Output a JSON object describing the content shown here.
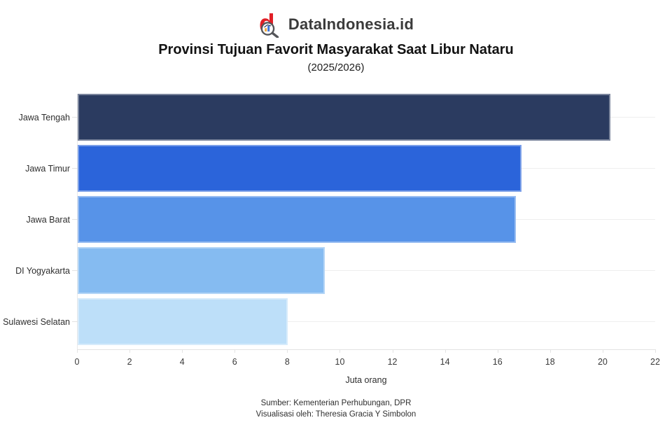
{
  "header": {
    "brand": "DataIndonesia.id",
    "logo_icon": "magnifying-glass-d-logo",
    "brand_red": "#e11f26",
    "title": "Provinsi Tujuan Favorit Masyarakat Saat Libur Nataru",
    "subtitle": "(2025/2026)"
  },
  "chart_data": {
    "type": "bar",
    "orientation": "horizontal",
    "title": "Provinsi Tujuan Favorit Masyarakat Saat Libur Nataru",
    "subtitle": "(2025/2026)",
    "categories": [
      "Jawa Tengah",
      "Jawa Timur",
      "Jawa Barat",
      "DI Yogyakarta",
      "Sulawesi Selatan"
    ],
    "values": [
      20.3,
      16.9,
      16.7,
      9.4,
      8.0
    ],
    "unit": "juta orang",
    "bar_colors": [
      "#2b3b60",
      "#2b64da",
      "#5793e8",
      "#85bbf1",
      "#bddff9"
    ],
    "xlabel": "Juta orang",
    "xlim": [
      0,
      22
    ],
    "xticks": [
      0,
      2,
      4,
      6,
      8,
      10,
      12,
      14,
      16,
      18,
      20,
      22
    ],
    "grid": true,
    "gridline_color": "#eeeeee",
    "legend": false
  },
  "footer": {
    "source": "Sumber: Kementerian Perhubungan, DPR",
    "credit": "Visualisasi oleh: Theresia Gracia Y Simbolon"
  }
}
